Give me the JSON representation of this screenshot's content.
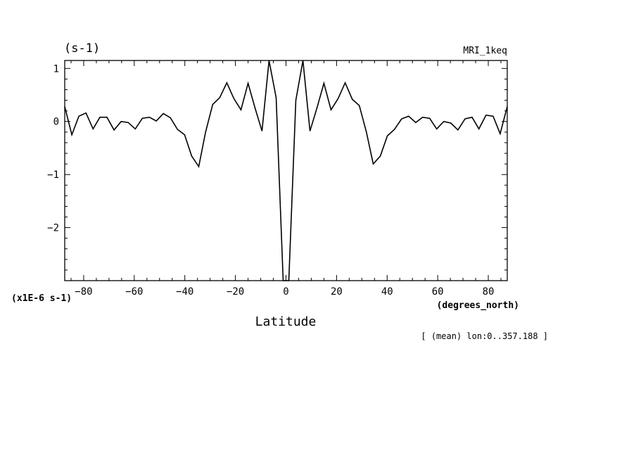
{
  "chart_data": {
    "type": "line",
    "title": "(s-1)",
    "top_right_label": "MRI_1keq",
    "xlabel": "Latitude",
    "x_unit": "(degrees_north)",
    "y_scale_note": "(x1E-6 s-1)",
    "footer_note": "[ (mean) lon:0..357.188 ]",
    "xlim": [
      -87.5,
      87.5
    ],
    "ylim": [
      -3.0,
      1.15
    ],
    "x_ticks": [
      -80,
      -60,
      -40,
      -20,
      0,
      20,
      40,
      60,
      80
    ],
    "x_tick_labels": [
      "−80",
      "−60",
      "−40",
      "−20",
      "0",
      "20",
      "40",
      "60",
      "80"
    ],
    "y_ticks": [
      1,
      0,
      -1,
      -2
    ],
    "y_tick_labels": [
      "1",
      "0",
      "−1",
      "−2"
    ],
    "line_color": "#000000",
    "grid": false,
    "series": [
      {
        "x": [
          -87.5,
          -84.7,
          -81.9,
          -79.1,
          -76.3,
          -73.6,
          -70.8,
          -68.0,
          -65.2,
          -62.4,
          -59.6,
          -56.8,
          -54.0,
          -51.3,
          -48.5,
          -45.7,
          -42.9,
          -40.1,
          -37.3,
          -34.5,
          -31.8,
          -29.0,
          -26.2,
          -23.4,
          -20.6,
          -17.8,
          -15.0,
          -12.2,
          -9.5,
          -6.7,
          -3.9,
          -1.1,
          1.1,
          3.9,
          6.7,
          9.5,
          12.2,
          15.0,
          17.8,
          20.6,
          23.4,
          26.2,
          29.0,
          31.8,
          34.5,
          37.3,
          40.1,
          42.9,
          45.7,
          48.5,
          51.3,
          54.0,
          56.8,
          59.6,
          62.4,
          65.2,
          68.0,
          70.8,
          73.6,
          76.3,
          79.1,
          81.9,
          84.7,
          87.5
        ],
        "y": [
          0.28,
          -0.25,
          0.1,
          0.16,
          -0.14,
          0.08,
          0.08,
          -0.16,
          0.0,
          -0.02,
          -0.14,
          0.06,
          0.08,
          0.01,
          0.15,
          0.07,
          -0.15,
          -0.25,
          -0.65,
          -0.85,
          -0.2,
          0.32,
          0.45,
          0.73,
          0.43,
          0.22,
          0.72,
          0.25,
          -0.18,
          1.15,
          0.45,
          -3.0,
          -3.0,
          0.4,
          1.15,
          -0.18,
          0.25,
          0.72,
          0.22,
          0.43,
          0.73,
          0.42,
          0.3,
          -0.2,
          -0.8,
          -0.65,
          -0.27,
          -0.15,
          0.05,
          0.1,
          -0.02,
          0.08,
          0.06,
          -0.14,
          0.0,
          -0.03,
          -0.16,
          0.05,
          0.08,
          -0.14,
          0.12,
          0.1,
          -0.23,
          0.28
        ]
      }
    ]
  }
}
